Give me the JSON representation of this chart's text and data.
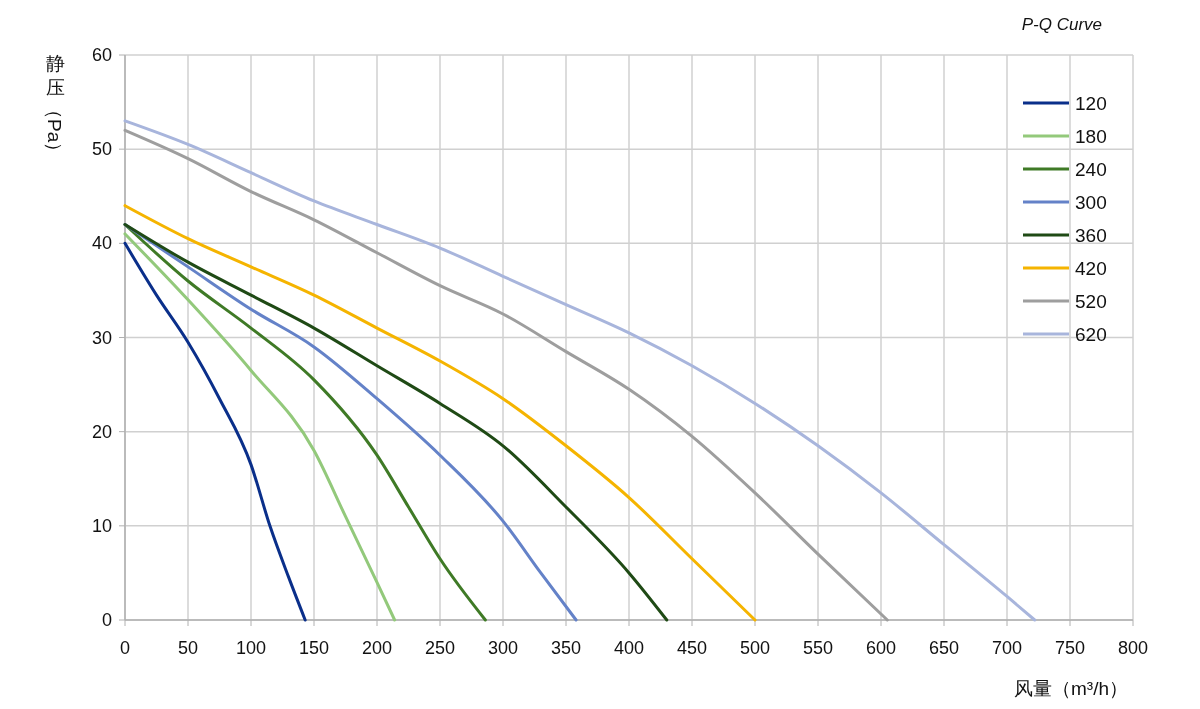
{
  "chart_data": {
    "type": "line",
    "title": "P-Q Curve",
    "xlabel": "风量（m³/h）",
    "ylabel": "静压（Pa）",
    "xlim": [
      0,
      800
    ],
    "xticks": [
      0,
      50,
      100,
      150,
      200,
      250,
      300,
      350,
      400,
      450,
      500,
      550,
      600,
      650,
      700,
      750,
      800
    ],
    "ylim": [
      0,
      60
    ],
    "yticks": [
      0,
      10,
      20,
      30,
      40,
      50,
      60
    ],
    "grid": true,
    "legend": "top right",
    "marker": "none",
    "line_style": "solid",
    "series": [
      {
        "name": "120",
        "color": "#0a2f8a",
        "x": [
          0,
          25,
          50,
          75,
          100,
          115,
          130,
          143
        ],
        "values": [
          40,
          34.5,
          29.5,
          23.5,
          16.5,
          10,
          4.5,
          0
        ]
      },
      {
        "name": "180",
        "color": "#93c97b",
        "x": [
          0,
          50,
          100,
          150,
          175,
          200,
          214
        ],
        "values": [
          41,
          34,
          26.5,
          18,
          11,
          4,
          0
        ]
      },
      {
        "name": "240",
        "color": "#3f7a26",
        "x": [
          0,
          50,
          100,
          150,
          200,
          225,
          250,
          286
        ],
        "values": [
          42,
          36,
          31,
          25.5,
          17.5,
          12,
          6.5,
          0
        ]
      },
      {
        "name": "300",
        "color": "#6482c8",
        "x": [
          0,
          50,
          100,
          150,
          200,
          250,
          300,
          330,
          358
        ],
        "values": [
          42,
          37.5,
          33,
          29,
          23.5,
          17.5,
          10.5,
          5,
          0
        ]
      },
      {
        "name": "360",
        "color": "#1f4a15",
        "x": [
          0,
          50,
          100,
          150,
          200,
          250,
          300,
          350,
          400,
          430
        ],
        "values": [
          42,
          38,
          34.5,
          31,
          27,
          23,
          18.5,
          12,
          5,
          0
        ]
      },
      {
        "name": "420",
        "color": "#f5b400",
        "x": [
          0,
          50,
          100,
          150,
          200,
          250,
          300,
          350,
          400,
          450,
          500
        ],
        "values": [
          44,
          40.5,
          37.5,
          34.5,
          31,
          27.5,
          23.5,
          18.5,
          13,
          6.5,
          0
        ]
      },
      {
        "name": "520",
        "color": "#9e9e9e",
        "x": [
          0,
          50,
          100,
          150,
          200,
          250,
          300,
          350,
          400,
          450,
          500,
          550,
          605
        ],
        "values": [
          52,
          49,
          45.5,
          42.5,
          39,
          35.5,
          32.5,
          28.5,
          24.5,
          19.5,
          13.5,
          7,
          0
        ]
      },
      {
        "name": "620",
        "color": "#a8b5dc",
        "x": [
          0,
          50,
          100,
          150,
          200,
          250,
          300,
          350,
          400,
          450,
          500,
          550,
          600,
          650,
          700,
          722
        ],
        "values": [
          53,
          50.5,
          47.5,
          44.5,
          42,
          39.5,
          36.5,
          33.5,
          30.5,
          27,
          23,
          18.5,
          13.5,
          8,
          2.5,
          0
        ]
      }
    ]
  }
}
